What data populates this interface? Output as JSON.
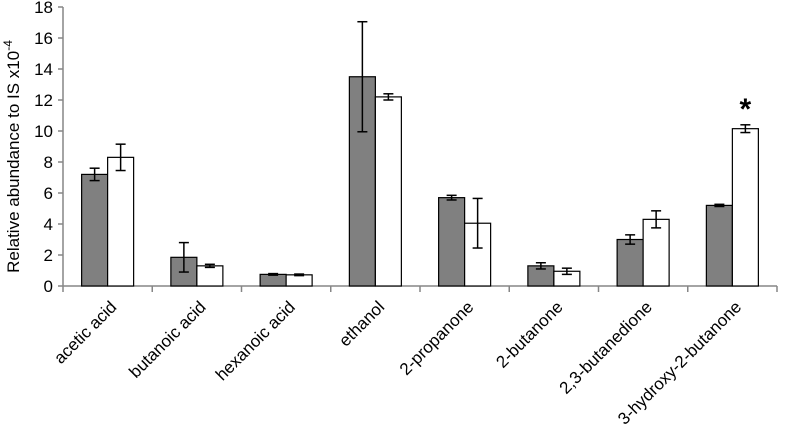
{
  "chart_data": {
    "type": "bar",
    "ylabel": "Relative abundance to IS x10",
    "ylabel_exponent": "-4",
    "ylim": [
      0,
      18
    ],
    "yticks": [
      "0",
      "2",
      "4",
      "6",
      "8",
      "10",
      "12",
      "14",
      "16",
      "18"
    ],
    "grid": false,
    "categories": [
      "acetic acid",
      "butanoic acid",
      "hexanoic acid",
      "ethanol",
      "2-propanone",
      "2-butanone",
      "2,3-butanedione",
      "3-hydroxy-2-butanone"
    ],
    "series": [
      {
        "color": "#808080",
        "values": [
          7.2,
          1.85,
          0.75,
          13.5,
          5.7,
          1.3,
          3.0,
          5.2
        ],
        "errors": [
          0.4,
          0.95,
          0.05,
          3.55,
          0.15,
          0.2,
          0.3,
          0.07
        ]
      },
      {
        "color": "#ffffff",
        "values": [
          8.3,
          1.3,
          0.72,
          12.2,
          4.05,
          0.95,
          4.3,
          10.15
        ],
        "errors": [
          0.85,
          0.1,
          0.05,
          0.2,
          1.6,
          0.2,
          0.55,
          0.25
        ]
      }
    ],
    "annotations": [
      {
        "category_index": 7,
        "series_index": 1,
        "text": "*"
      }
    ]
  }
}
